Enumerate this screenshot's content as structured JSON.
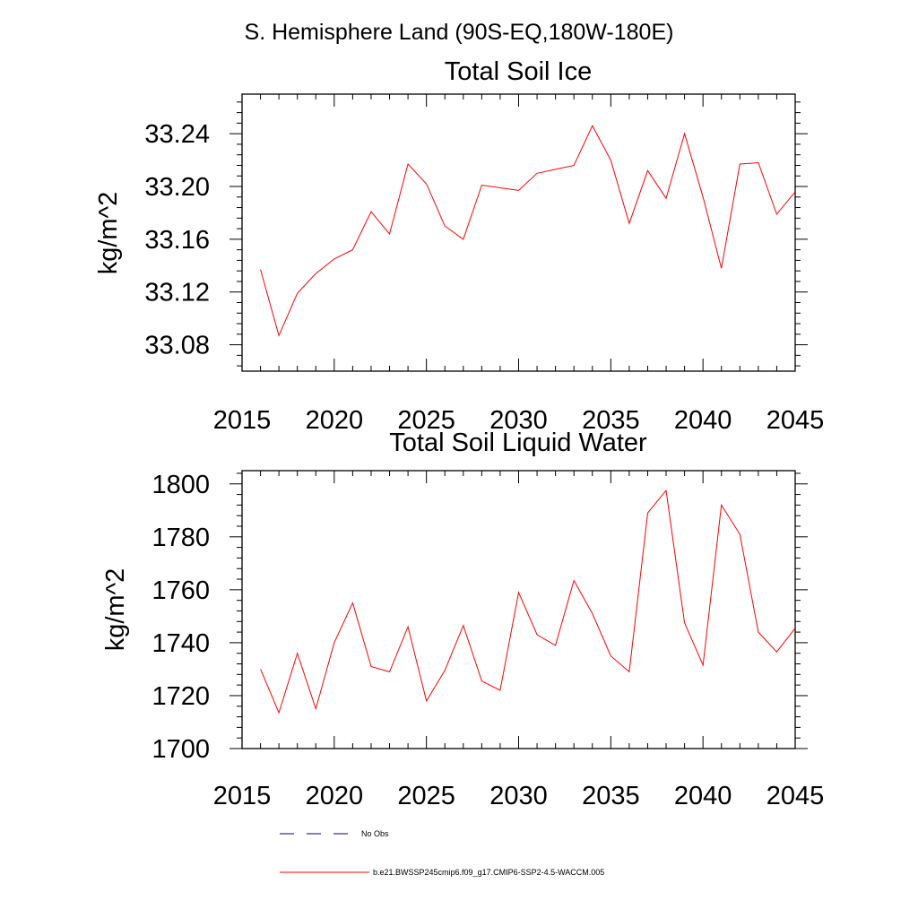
{
  "figure_title": "S. Hemisphere Land (90S-EQ,180W-180E)",
  "chart_data": [
    {
      "type": "line",
      "title": "Total Soil Ice",
      "xlabel": "",
      "ylabel": "kg/m^2",
      "xlim": [
        2015,
        2045
      ],
      "ylim": [
        33.06,
        33.27
      ],
      "xticks": [
        2015,
        2020,
        2025,
        2030,
        2035,
        2040,
        2045
      ],
      "yticks": [
        33.08,
        33.12,
        33.16,
        33.2,
        33.24
      ],
      "ytick_labels": [
        "33.08",
        "33.12",
        "33.16",
        "33.20",
        "33.24"
      ],
      "series": [
        {
          "name": "b.e21.BWSSP245cmip6.f09_g17.CMIP6-SSP2-4.5-WACCM.005",
          "color": "#ff0000",
          "x": [
            2016,
            2017,
            2018,
            2019,
            2020,
            2021,
            2022,
            2023,
            2024,
            2025,
            2026,
            2027,
            2028,
            2029,
            2030,
            2031,
            2032,
            2033,
            2034,
            2035,
            2036,
            2037,
            2038,
            2039,
            2040,
            2041,
            2042,
            2043,
            2044,
            2045
          ],
          "values": [
            33.137,
            33.087,
            33.119,
            33.134,
            33.145,
            33.152,
            33.181,
            33.164,
            33.217,
            33.202,
            33.17,
            33.16,
            33.201,
            33.199,
            33.197,
            33.21,
            33.213,
            33.216,
            33.246,
            33.22,
            33.172,
            33.212,
            33.191,
            33.24,
            33.192,
            33.138,
            33.217,
            33.218,
            33.179,
            33.196
          ]
        }
      ]
    },
    {
      "type": "line",
      "title": "Total Soil Liquid Water",
      "xlabel": "",
      "ylabel": "kg/m^2",
      "xlim": [
        2015,
        2045
      ],
      "ylim": [
        1700,
        1805
      ],
      "xticks": [
        2015,
        2020,
        2025,
        2030,
        2035,
        2040,
        2045
      ],
      "yticks": [
        1700,
        1720,
        1740,
        1760,
        1780,
        1800
      ],
      "ytick_labels": [
        "1700",
        "1720",
        "1740",
        "1760",
        "1780",
        "1800"
      ],
      "series": [
        {
          "name": "b.e21.BWSSP245cmip6.f09_g17.CMIP6-SSP2-4.5-WACCM.005",
          "color": "#ff0000",
          "x": [
            2016,
            2017,
            2018,
            2019,
            2020,
            2021,
            2022,
            2023,
            2024,
            2025,
            2026,
            2027,
            2028,
            2029,
            2030,
            2031,
            2032,
            2033,
            2034,
            2035,
            2036,
            2037,
            2038,
            2039,
            2040,
            2041,
            2042,
            2043,
            2044,
            2045
          ],
          "values": [
            1730,
            1713.5,
            1736,
            1715,
            1740,
            1755,
            1731,
            1729,
            1746,
            1718,
            1729.5,
            1746.5,
            1725.5,
            1722,
            1759,
            1743,
            1739,
            1763.5,
            1751,
            1735,
            1729,
            1789,
            1797.5,
            1747.5,
            1731.5,
            1792,
            1781,
            1744,
            1736.5,
            1745.5
          ]
        }
      ]
    }
  ],
  "legend": {
    "position": "bottom-center",
    "items": [
      {
        "label": "No Obs",
        "style": "dashed",
        "color": "#000080"
      },
      {
        "label": "b.e21.BWSSP245cmip6.f09_g17.CMIP6-SSP2-4.5-WACCM.005",
        "style": "solid",
        "color": "#ff0000"
      }
    ]
  }
}
